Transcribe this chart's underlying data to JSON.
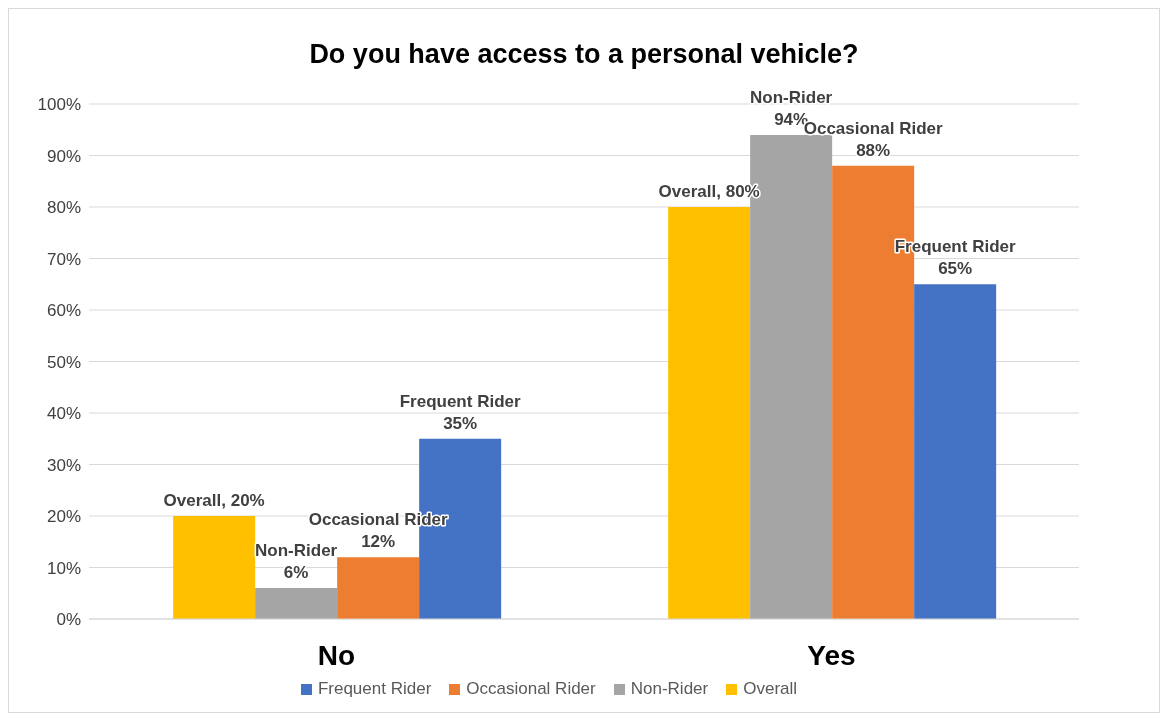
{
  "chart_data": {
    "type": "bar",
    "title": "Do you have access to a personal vehicle?",
    "categories": [
      "No",
      "Yes"
    ],
    "series": [
      {
        "name": "Overall",
        "color": "#ffc000",
        "values": [
          20,
          80
        ],
        "value_labels": [
          "Overall, 20%",
          "Overall, 80%"
        ]
      },
      {
        "name": "Non-Rider",
        "color": "#a5a5a5",
        "values": [
          6,
          94
        ],
        "value_labels": [
          "Non-Rider\n6%",
          "Non-Rider\n94%"
        ]
      },
      {
        "name": "Occasional Rider",
        "color": "#ed7d31",
        "values": [
          12,
          88
        ],
        "value_labels": [
          "Occasional Rider\n12%",
          "Occasional Rider\n88%"
        ]
      },
      {
        "name": "Frequent Rider",
        "color": "#4472c4",
        "values": [
          35,
          65
        ],
        "value_labels": [
          "Frequent Rider\n35%",
          "Frequent Rider\n65%"
        ]
      }
    ],
    "ylim": [
      0,
      100
    ],
    "yticks": [
      {
        "value": 0,
        "label": "0%"
      },
      {
        "value": 10,
        "label": "10%"
      },
      {
        "value": 20,
        "label": "20%"
      },
      {
        "value": 30,
        "label": "30%"
      },
      {
        "value": 40,
        "label": "40%"
      },
      {
        "value": 50,
        "label": "50%"
      },
      {
        "value": 60,
        "label": "60%"
      },
      {
        "value": 70,
        "label": "70%"
      },
      {
        "value": 80,
        "label": "80%"
      },
      {
        "value": 90,
        "label": "90%"
      },
      {
        "value": 100,
        "label": "100%"
      }
    ],
    "grid": "y",
    "legend": "bottom"
  }
}
